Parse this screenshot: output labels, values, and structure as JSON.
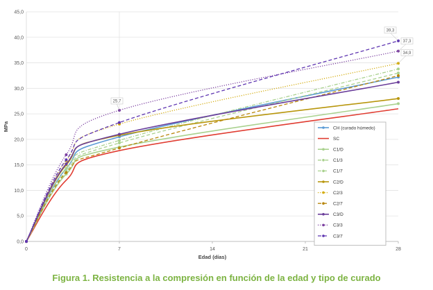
{
  "caption": "Figura 1. Resistencia a la compresión en función de la edad y tipo de curado",
  "chart_data": {
    "type": "line",
    "xlabel": "Edad (días)",
    "ylabel": "MPa",
    "xlim": [
      0,
      28
    ],
    "ylim": [
      0,
      45
    ],
    "x_ticks": [
      0,
      7,
      14,
      21,
      28
    ],
    "x_tick_labels": [
      "0",
      "7",
      "14",
      "21",
      "28"
    ],
    "y_ticks": [
      0,
      5,
      10,
      15,
      20,
      25,
      30,
      35,
      40,
      45
    ],
    "y_tick_labels": [
      "0,0",
      "5,0",
      "10,0",
      "15,0",
      "20,0",
      "25,0",
      "30,0",
      "35,0",
      "40,0",
      "45,0"
    ],
    "vertical_gridlines_at": [
      7
    ],
    "legend_position": "right",
    "series": [
      {
        "name": "CH (curado húmedo)",
        "color": "#5b9bd5",
        "dash": "solid",
        "marker": "circle",
        "x": [
          0,
          3,
          7,
          28
        ],
        "y": [
          0,
          14.3,
          20.5,
          32.2
        ]
      },
      {
        "name": "SC",
        "color": "#e03c31",
        "dash": "solid",
        "marker": "none",
        "x": [
          0,
          3,
          7,
          28
        ],
        "y": [
          0,
          12.0,
          17.8,
          26.0
        ]
      },
      {
        "name": "C1/D",
        "color": "#a9d18e",
        "dash": "solid",
        "marker": "circle",
        "x": [
          0,
          3,
          7,
          28
        ],
        "y": [
          0,
          13.2,
          18.5,
          27.0
        ]
      },
      {
        "name": "C1/3",
        "color": "#a9d18e",
        "dash": "dashdot",
        "marker": "circle",
        "x": [
          0,
          3,
          7,
          28
        ],
        "y": [
          0,
          14.3,
          19.8,
          33.8
        ]
      },
      {
        "name": "C1/7",
        "color": "#a9d18e",
        "dash": "dashed",
        "marker": "circle",
        "x": [
          0,
          3,
          7,
          28
        ],
        "y": [
          0,
          13.8,
          19.3,
          33.0
        ]
      },
      {
        "name": "C2/D",
        "color": "#b8960c",
        "dash": "solid",
        "marker": "circle",
        "x": [
          0,
          3,
          7,
          28
        ],
        "y": [
          0,
          15.0,
          20.8,
          28.0
        ]
      },
      {
        "name": "C2/3",
        "color": "#d4ac0d",
        "dash": "dotted",
        "marker": "circle",
        "x": [
          0,
          3,
          7,
          28
        ],
        "y": [
          0,
          15.8,
          23.0,
          34.9
        ]
      },
      {
        "name": "C2/7",
        "color": "#b8860b",
        "dash": "dashed",
        "marker": "circle",
        "x": [
          0,
          3,
          7,
          28
        ],
        "y": [
          0,
          13.5,
          18.3,
          32.5
        ]
      },
      {
        "name": "C3/D",
        "color": "#6a3d9a",
        "dash": "solid",
        "marker": "circle",
        "x": [
          0,
          3,
          7,
          28
        ],
        "y": [
          0,
          15.2,
          21.0,
          31.2
        ]
      },
      {
        "name": "C3/3",
        "color": "#7b3fa0",
        "dash": "dotted",
        "marker": "circle",
        "x": [
          0,
          3,
          7,
          28
        ],
        "y": [
          0,
          17.0,
          25.7,
          37.3
        ]
      },
      {
        "name": "C3/7",
        "color": "#5e35b1",
        "dash": "dashed",
        "marker": "circle",
        "x": [
          0,
          3,
          7,
          28
        ],
        "y": [
          0,
          16.0,
          23.3,
          39.3
        ]
      }
    ],
    "callouts": [
      {
        "text": "25,7",
        "x": 7,
        "y": 25.7
      },
      {
        "text": "39,3",
        "x": 28,
        "y": 39.3
      },
      {
        "text": "37,3",
        "x": 28,
        "y": 37.3
      },
      {
        "text": "34,9",
        "x": 28,
        "y": 34.9
      }
    ]
  }
}
